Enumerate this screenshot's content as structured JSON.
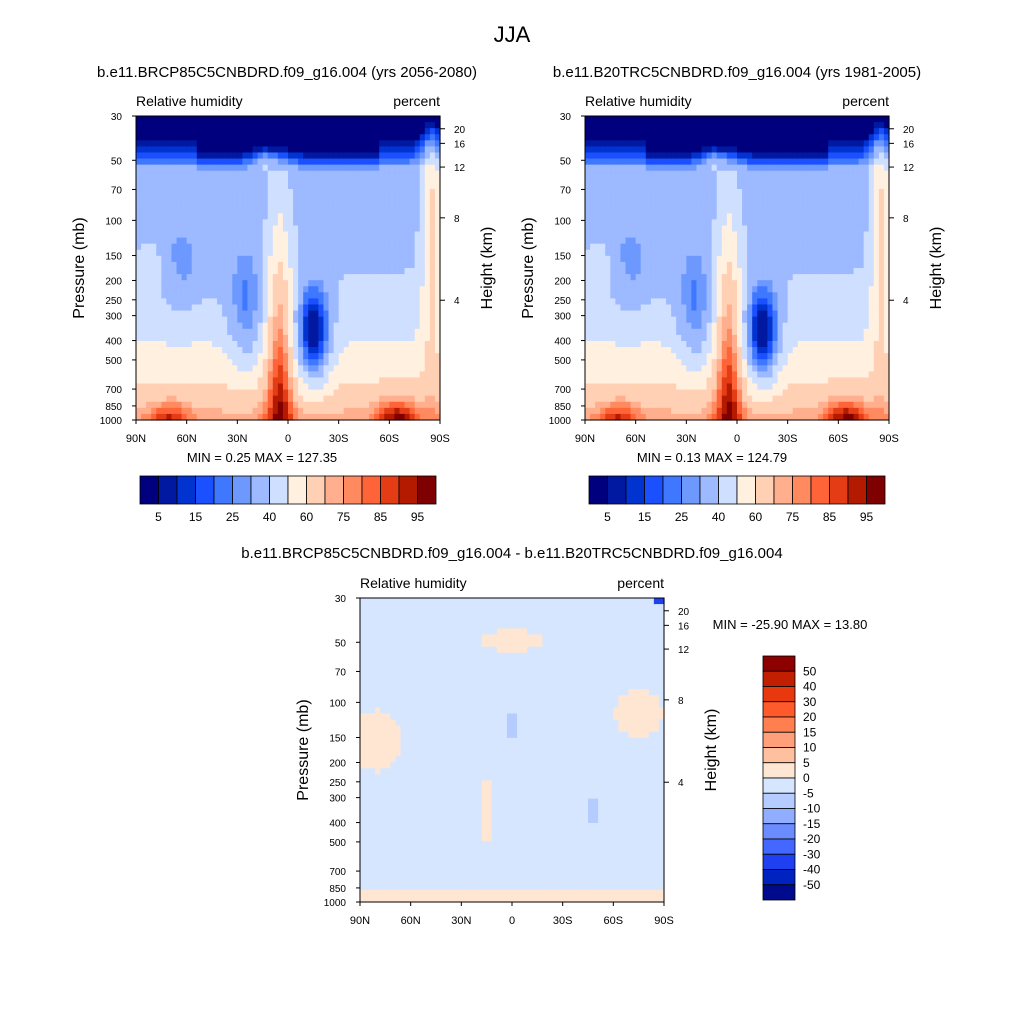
{
  "figure_title": "JJA",
  "chart_data": [
    {
      "type": "heatmap",
      "title": "b.e11.BRCP85C5CNBDRD.f09_g16.004 (yrs 2056-2080)",
      "subtitle_left": "Relative humidity",
      "subtitle_right": "percent",
      "ylabel": "Pressure (mb)",
      "ylabel_right": "Height (km)",
      "x_ticks": [
        "90N",
        "60N",
        "30N",
        "0",
        "30S",
        "60S",
        "90S"
      ],
      "y_ticks": [
        "30",
        "50",
        "70",
        "100",
        "150",
        "200",
        "250",
        "300",
        "400",
        "500",
        "700",
        "850",
        "1000"
      ],
      "y_ticks_right": [
        "20",
        "16",
        "12",
        "8",
        "4"
      ],
      "stats": "MIN =   0.25  MAX = 127.35",
      "colorbar_labels": [
        "5",
        "15",
        "25",
        "40",
        "60",
        "75",
        "85",
        "95"
      ],
      "colorbar_colors": [
        "#00007f",
        "#0019a0",
        "#0033d0",
        "#1a50ff",
        "#3f78ff",
        "#6d99ff",
        "#9db9ff",
        "#cfdfff",
        "#fff0e0",
        "#ffd0b4",
        "#ffaf8e",
        "#ff8a60",
        "#ff6438",
        "#e43c14",
        "#b31a00",
        "#7f0000"
      ],
      "ylim": [
        30,
        1000
      ],
      "ylog": true
    },
    {
      "type": "heatmap",
      "title": "b.e11.B20TRC5CNBDRD.f09_g16.004 (yrs 1981-2005)",
      "subtitle_left": "Relative humidity",
      "subtitle_right": "percent",
      "ylabel": "Pressure (mb)",
      "ylabel_right": "Height (km)",
      "x_ticks": [
        "90N",
        "60N",
        "30N",
        "0",
        "30S",
        "60S",
        "90S"
      ],
      "y_ticks": [
        "30",
        "50",
        "70",
        "100",
        "150",
        "200",
        "250",
        "300",
        "400",
        "500",
        "700",
        "850",
        "1000"
      ],
      "y_ticks_right": [
        "20",
        "16",
        "12",
        "8",
        "4"
      ],
      "stats": "MIN =   0.13  MAX = 124.79",
      "colorbar_labels": [
        "5",
        "15",
        "25",
        "40",
        "60",
        "75",
        "85",
        "95"
      ],
      "colorbar_colors": [
        "#00007f",
        "#0019a0",
        "#0033d0",
        "#1a50ff",
        "#3f78ff",
        "#6d99ff",
        "#9db9ff",
        "#cfdfff",
        "#fff0e0",
        "#ffd0b4",
        "#ffaf8e",
        "#ff8a60",
        "#ff6438",
        "#e43c14",
        "#b31a00",
        "#7f0000"
      ],
      "ylim": [
        30,
        1000
      ],
      "ylog": true
    },
    {
      "type": "heatmap",
      "title": "b.e11.BRCP85C5CNBDRD.f09_g16.004 - b.e11.B20TRC5CNBDRD.f09_g16.004",
      "subtitle_left": "Relative humidity",
      "subtitle_right": "percent",
      "ylabel": "Pressure (mb)",
      "ylabel_right": "Height (km)",
      "x_ticks": [
        "90N",
        "60N",
        "30N",
        "0",
        "30S",
        "60S",
        "90S"
      ],
      "y_ticks": [
        "30",
        "50",
        "70",
        "100",
        "150",
        "200",
        "250",
        "300",
        "400",
        "500",
        "700",
        "850",
        "1000"
      ],
      "y_ticks_right": [
        "20",
        "16",
        "12",
        "8",
        "4"
      ],
      "stats": "MIN = -25.90  MAX =  13.80",
      "colorbar_labels": [
        "50",
        "40",
        "30",
        "20",
        "15",
        "10",
        "5",
        "0",
        "-5",
        "-10",
        "-15",
        "-20",
        "-30",
        "-40",
        "-50"
      ],
      "colorbar_colors": [
        "#8c0000",
        "#c21e00",
        "#e8380e",
        "#ff5a2c",
        "#ff7f50",
        "#ffa07a",
        "#ffc0a0",
        "#ffe6d2",
        "#d6e6ff",
        "#b4ccff",
        "#90adff",
        "#6a8cff",
        "#4468ff",
        "#1e40f0",
        "#0022c0",
        "#000a8c"
      ],
      "ylim": [
        30,
        1000
      ],
      "ylog": true
    }
  ]
}
